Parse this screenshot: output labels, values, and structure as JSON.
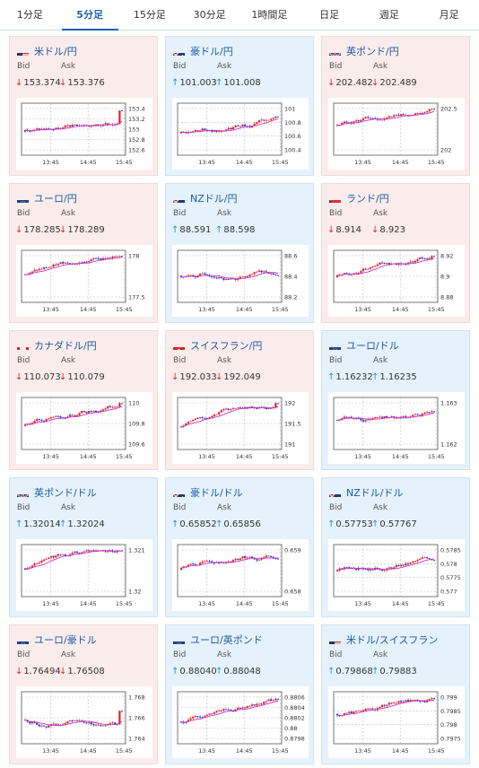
{
  "tabs": [
    "1分足",
    "5分足",
    "15分足",
    "30分足",
    "1時間足",
    "日足",
    "週足",
    "月足"
  ],
  "active_tab": 1,
  "labels": {
    "bid": "Bid",
    "ask": "Ask"
  },
  "x_ticks": [
    "13:45",
    "14:45",
    "15:45"
  ],
  "colors": {
    "up_bg": "#e6f2fb",
    "down_bg": "#fbecec",
    "pair_text": "#1a5aa6",
    "down_arrow": "#dd2222",
    "up_arrow": "#1d8ed8",
    "ma_line": "#cc33cc",
    "candle_up": "#e02020",
    "candle_down": "#2030c8"
  },
  "cards": [
    {
      "name": "米ドル/円",
      "flag": "us",
      "dir": "down",
      "bid": "153.374",
      "ask": "153.376",
      "yticks": [
        "153.4",
        "153.2",
        "153",
        "152.8",
        "152.6"
      ]
    },
    {
      "name": "豪ドル/円",
      "flag": "au",
      "dir": "up",
      "bid": "101.003",
      "ask": "101.008",
      "yticks": [
        "101",
        "100.8",
        "100.6",
        "100.4"
      ]
    },
    {
      "name": "英ポンド/円",
      "flag": "gb",
      "dir": "down",
      "bid": "202.482",
      "ask": "202.489",
      "yticks": [
        "202.5",
        "202"
      ]
    },
    {
      "name": "ユーロ/円",
      "flag": "eu",
      "dir": "down",
      "bid": "178.285",
      "ask": "178.289",
      "yticks": [
        "178",
        "177.5"
      ]
    },
    {
      "name": "NZドル/円",
      "flag": "nz",
      "dir": "up",
      "bid": "88.591",
      "ask": "88.598",
      "yticks": [
        "88.6",
        "88.4",
        "88.2"
      ]
    },
    {
      "name": "ランド/円",
      "flag": "za",
      "dir": "down",
      "bid": "8.914",
      "ask": "8.923",
      "yticks": [
        "8.92",
        "8.9",
        "8.88"
      ]
    },
    {
      "name": "カナダドル/円",
      "flag": "ca",
      "dir": "down",
      "bid": "110.073",
      "ask": "110.079",
      "yticks": [
        "110",
        "109.8",
        "109.6"
      ]
    },
    {
      "name": "スイスフラン/円",
      "flag": "ch",
      "dir": "down",
      "bid": "192.033",
      "ask": "192.049",
      "yticks": [
        "192",
        "191.5",
        "191"
      ]
    },
    {
      "name": "ユーロ/ドル",
      "flag": "eu",
      "dir": "up",
      "bid": "1.16232",
      "ask": "1.16235",
      "yticks": [
        "1.163",
        "1.162"
      ]
    },
    {
      "name": "英ポンド/ドル",
      "flag": "gb",
      "dir": "up",
      "bid": "1.32014",
      "ask": "1.32024",
      "yticks": [
        "1.321",
        "1.32"
      ]
    },
    {
      "name": "豪ドル/ドル",
      "flag": "au",
      "dir": "up",
      "bid": "0.65852",
      "ask": "0.65856",
      "yticks": [
        "0.659",
        "0.658"
      ]
    },
    {
      "name": "NZドル/ドル",
      "flag": "nz",
      "dir": "up",
      "bid": "0.57753",
      "ask": "0.57767",
      "yticks": [
        "0.5785",
        "0.578",
        "0.5775",
        "0.577"
      ]
    },
    {
      "name": "ユーロ/豪ドル",
      "flag": "eu",
      "dir": "down",
      "bid": "1.76494",
      "ask": "1.76508",
      "yticks": [
        "1.768",
        "1.766",
        "1.764"
      ]
    },
    {
      "name": "ユーロ/英ポンド",
      "flag": "eu",
      "dir": "up",
      "bid": "0.88040",
      "ask": "0.88048",
      "yticks": [
        "0.8806",
        "0.8804",
        "0.8802",
        "0.88",
        "0.8798"
      ]
    },
    {
      "name": "米ドル/スイスフラン",
      "flag": "us",
      "dir": "up",
      "bid": "0.79868",
      "ask": "0.79883",
      "yticks": [
        "0.799",
        "0.7985",
        "0.798",
        "0.7975"
      ]
    }
  ]
}
